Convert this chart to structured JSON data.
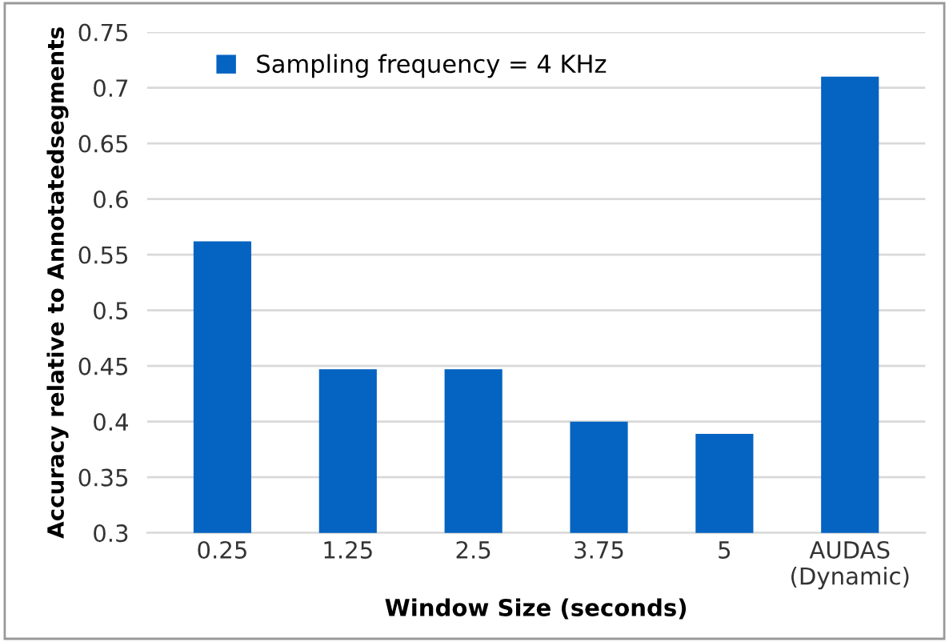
{
  "chart_data": {
    "type": "bar",
    "xlabel": "Window Size (seconds)",
    "ylabel": "Accuracy relative to Annotatedsegments",
    "categories": [
      "0.25",
      "1.25",
      "2.5",
      "3.75",
      "5",
      "AUDAS\n(Dynamic)"
    ],
    "series": [
      {
        "name": "Sampling frequency = 4 KHz",
        "color": "#0563c1",
        "values": [
          0.562,
          0.447,
          0.447,
          0.4,
          0.389,
          0.71
        ]
      }
    ],
    "ylim": [
      0.3,
      0.75
    ],
    "yticks": [
      0.3,
      0.35,
      0.4,
      0.45,
      0.5,
      0.55,
      0.6,
      0.65,
      0.7,
      0.75
    ],
    "grid": "y",
    "legend": "top"
  }
}
